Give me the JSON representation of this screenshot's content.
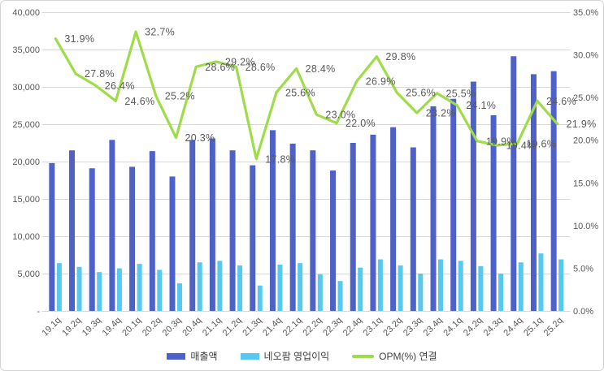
{
  "chart_data": {
    "type": "combo-bar-line",
    "title": "",
    "categories": [
      "19.1q",
      "19.2q",
      "19.3q",
      "19.4q",
      "20.1q",
      "20.2q",
      "20.3q",
      "20.4q",
      "21.1q",
      "21.2q",
      "21.3q",
      "21.4q",
      "22.1q",
      "22.2q",
      "22.3q",
      "22.4q",
      "23.1q",
      "23.2q",
      "23.3q",
      "23.4q",
      "24.1q",
      "24.2q",
      "24.3q",
      "24.4q",
      "25.1q",
      "25.2q"
    ],
    "series": [
      {
        "name": "매출액",
        "type": "bar",
        "axis": "left",
        "color": "#4e61c9",
        "values": [
          19800,
          21500,
          19100,
          22900,
          19300,
          21400,
          18000,
          22900,
          23100,
          21500,
          19500,
          24200,
          22400,
          21500,
          18800,
          22500,
          23600,
          24600,
          21900,
          27400,
          28400,
          30700,
          26200,
          34100,
          31700,
          32100
        ]
      },
      {
        "name": "네오팜 영업이익",
        "type": "bar",
        "axis": "left",
        "color": "#57c9f0",
        "values": [
          6400,
          5900,
          5200,
          5700,
          6300,
          5500,
          3700,
          6500,
          6700,
          6100,
          3400,
          6200,
          6400,
          4900,
          4000,
          5800,
          6900,
          6100,
          5000,
          6900,
          6700,
          6000,
          5000,
          6500,
          7700,
          6900
        ]
      },
      {
        "name": "OPM(%) 연결",
        "type": "line",
        "axis": "right",
        "color": "#9fdc4a",
        "values": [
          31.9,
          27.8,
          26.4,
          24.6,
          32.7,
          25.2,
          20.3,
          28.6,
          29.2,
          28.6,
          17.8,
          25.6,
          28.4,
          23.0,
          22.0,
          26.9,
          29.8,
          25.6,
          23.2,
          25.5,
          24.1,
          19.9,
          19.4,
          19.6,
          24.6,
          21.9
        ],
        "data_labels": [
          "31.9%",
          "27.8%",
          "26.4%",
          "24.6%",
          "32.7%",
          "25.2%",
          "20.3%",
          "28.6%",
          "29.2%",
          "28.6%",
          "17.8%",
          "25.6%",
          "28.4%",
          "23.0%",
          "22.0%",
          "26.9%",
          "29.8%",
          "25.6%",
          "23.2%",
          "25.5%",
          "24.1%",
          "19.9%",
          "19.4%",
          "19.6%",
          "24.6%",
          "21.9%"
        ]
      }
    ],
    "left_axis": {
      "min": 0,
      "max": 40000,
      "step": 5000,
      "labels": [
        "-",
        "5,000",
        "10,000",
        "15,000",
        "20,000",
        "25,000",
        "30,000",
        "35,000",
        "40,000"
      ]
    },
    "right_axis": {
      "min": 0,
      "max": 35,
      "step": 5,
      "labels": [
        "0.0%",
        "5.0%",
        "10.0%",
        "15.0%",
        "20.0%",
        "25.0%",
        "30.0%",
        "35.0%"
      ]
    },
    "grid": true,
    "legend_position": "bottom",
    "colors": {
      "gridline": "#d9d9d9",
      "axis_text": "#595959",
      "data_label_text": "#595959",
      "legend_text": "#404040",
      "background": "#ffffff",
      "frame_border": "#d4d4d4"
    }
  }
}
